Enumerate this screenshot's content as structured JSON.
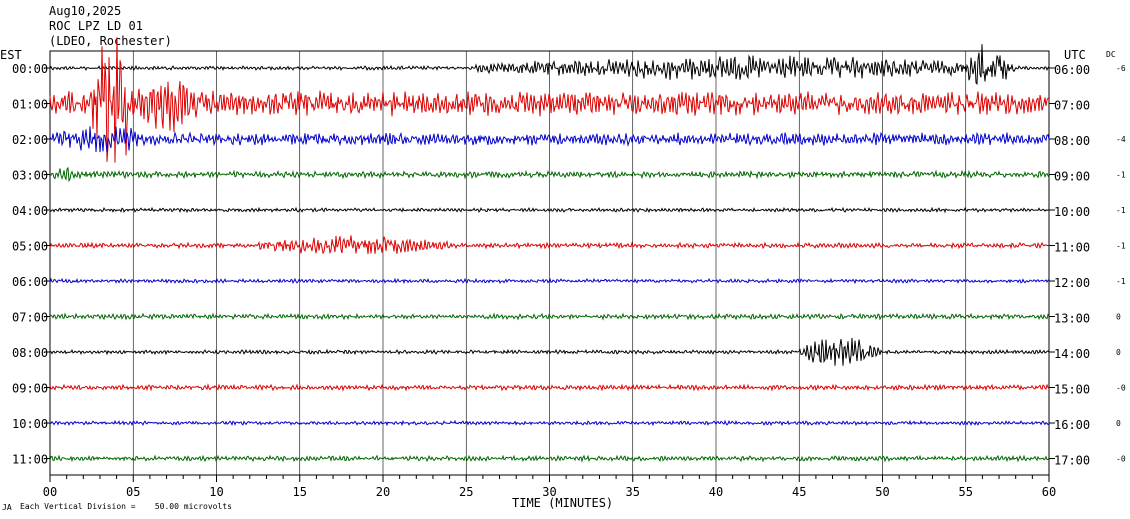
{
  "header": {
    "date": "Aug10,2025",
    "station": "ROC LPZ LD 01",
    "network": "(LDEO, Rochester)",
    "est_label": "EST",
    "utc_label": "UTC",
    "dc_label": "DC"
  },
  "footer": {
    "xlabel": "TIME (MINUTES)",
    "scale_prefix": "JA",
    "scale_note": "Each Vertical Division =    50.00 microvolts"
  },
  "colors": {
    "black": "#000000",
    "red": "#dd0000",
    "blue": "#0000cc",
    "green": "#006600",
    "grid": "#000000"
  },
  "chart_data": {
    "type": "line",
    "title": "",
    "xlabel": "TIME (MINUTES)",
    "xlim": [
      0,
      60
    ],
    "x_ticks": [
      "00",
      "05",
      "10",
      "15",
      "20",
      "25",
      "30",
      "35",
      "40",
      "45",
      "50",
      "55",
      "60"
    ],
    "grid": true,
    "series": [
      {
        "est": "00:00",
        "utc": "06:00",
        "dc": "-6",
        "color": "black",
        "base_amp": 1.5,
        "events": [
          {
            "start": 25.5,
            "end": 58,
            "amp": 10
          },
          {
            "start": 55,
            "end": 58,
            "amp": 22
          }
        ]
      },
      {
        "est": "01:00",
        "utc": "07:00",
        "dc": "",
        "color": "red",
        "base_amp": 10,
        "events": [
          {
            "start": 2.5,
            "end": 5,
            "amp": 60
          },
          {
            "start": 5,
            "end": 9,
            "amp": 25
          }
        ]
      },
      {
        "est": "02:00",
        "utc": "08:00",
        "dc": "-4",
        "color": "blue",
        "base_amp": 5,
        "events": [
          {
            "start": 0,
            "end": 6,
            "amp": 12
          }
        ]
      },
      {
        "est": "03:00",
        "utc": "09:00",
        "dc": "-1",
        "color": "green",
        "base_amp": 2.5,
        "events": [
          {
            "start": 0,
            "end": 2,
            "amp": 6
          }
        ]
      },
      {
        "est": "04:00",
        "utc": "10:00",
        "dc": "-1",
        "color": "black",
        "base_amp": 1.5,
        "events": []
      },
      {
        "est": "05:00",
        "utc": "11:00",
        "dc": "-1",
        "color": "red",
        "base_amp": 2,
        "events": [
          {
            "start": 12,
            "end": 24,
            "amp": 8
          }
        ]
      },
      {
        "est": "06:00",
        "utc": "12:00",
        "dc": "-1",
        "color": "blue",
        "base_amp": 1.5,
        "events": []
      },
      {
        "est": "07:00",
        "utc": "13:00",
        "dc": "0",
        "color": "green",
        "base_amp": 2,
        "events": []
      },
      {
        "est": "08:00",
        "utc": "14:00",
        "dc": "0",
        "color": "black",
        "base_amp": 1.5,
        "events": [
          {
            "start": 45,
            "end": 50,
            "amp": 12
          }
        ]
      },
      {
        "est": "09:00",
        "utc": "15:00",
        "dc": "-0",
        "color": "red",
        "base_amp": 2,
        "events": []
      },
      {
        "est": "10:00",
        "utc": "16:00",
        "dc": "0",
        "color": "blue",
        "base_amp": 1.5,
        "events": []
      },
      {
        "est": "11:00",
        "utc": "17:00",
        "dc": "-0",
        "color": "green",
        "base_amp": 2,
        "events": []
      }
    ]
  }
}
